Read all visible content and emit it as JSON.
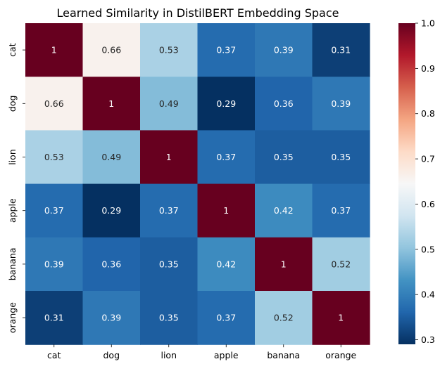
{
  "chart_data": {
    "type": "heatmap",
    "title": "Learned Similarity in DistilBERT Embedding Space",
    "xlabel": "",
    "ylabel": "",
    "x_categories": [
      "cat",
      "dog",
      "lion",
      "apple",
      "banana",
      "orange"
    ],
    "y_categories": [
      "cat",
      "dog",
      "lion",
      "apple",
      "banana",
      "orange"
    ],
    "values": [
      [
        1,
        0.66,
        0.53,
        0.37,
        0.39,
        0.31
      ],
      [
        0.66,
        1,
        0.49,
        0.29,
        0.36,
        0.39
      ],
      [
        0.53,
        0.49,
        1,
        0.37,
        0.35,
        0.35
      ],
      [
        0.37,
        0.29,
        0.37,
        1,
        0.42,
        0.37
      ],
      [
        0.39,
        0.36,
        0.35,
        0.42,
        1,
        0.52
      ],
      [
        0.31,
        0.39,
        0.35,
        0.37,
        0.52,
        1
      ]
    ],
    "annotations": [
      [
        "1",
        "0.66",
        "0.53",
        "0.37",
        "0.39",
        "0.31"
      ],
      [
        "0.66",
        "1",
        "0.49",
        "0.29",
        "0.36",
        "0.39"
      ],
      [
        "0.53",
        "0.49",
        "1",
        "0.37",
        "0.35",
        "0.35"
      ],
      [
        "0.37",
        "0.29",
        "0.37",
        "1",
        "0.42",
        "0.37"
      ],
      [
        "0.39",
        "0.36",
        "0.35",
        "0.42",
        "1",
        "0.52"
      ],
      [
        "0.31",
        "0.39",
        "0.35",
        "0.37",
        "0.52",
        "1"
      ]
    ],
    "colormap": "RdBu_r",
    "colorbar": {
      "vmin": 0.29,
      "vmax": 1.0,
      "ticks": [
        0.3,
        0.4,
        0.5,
        0.6,
        0.7,
        0.8,
        0.9,
        1.0
      ],
      "tick_labels": [
        "0.3",
        "0.4",
        "0.5",
        "0.6",
        "0.7",
        "0.8",
        "0.9",
        "1.0"
      ]
    }
  }
}
